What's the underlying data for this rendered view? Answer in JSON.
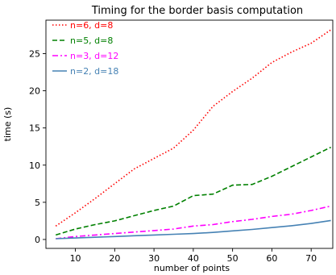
{
  "chart_data": {
    "type": "line",
    "title": "Timing for the border basis computation",
    "xlabel": "number of points",
    "ylabel": "time (s)",
    "xlim": [
      2.5,
      75.5
    ],
    "ylim": [
      -1.2,
      29.5
    ],
    "xticks": [
      10,
      20,
      30,
      40,
      50,
      60,
      70
    ],
    "yticks": [
      0,
      5,
      10,
      15,
      20,
      25
    ],
    "grid": false,
    "legend_position": "top-left",
    "x": [
      5,
      10,
      15,
      20,
      25,
      30,
      35,
      40,
      45,
      50,
      55,
      60,
      65,
      70,
      75
    ],
    "series": [
      {
        "name": "n=6, d=8",
        "color": "#ff0000",
        "linestyle": "dotted",
        "values": [
          1.8,
          3.6,
          5.5,
          7.5,
          9.5,
          10.9,
          12.3,
          14.7,
          17.9,
          19.9,
          21.7,
          23.8,
          25.2,
          26.4,
          28.2
        ]
      },
      {
        "name": "n=5, d=8",
        "color": "#008000",
        "linestyle": "dashed",
        "values": [
          0.6,
          1.4,
          2.0,
          2.5,
          3.2,
          3.9,
          4.5,
          5.9,
          6.1,
          7.3,
          7.4,
          8.5,
          9.8,
          11.1,
          12.4
        ]
      },
      {
        "name": "n=3, d=12",
        "color": "#ff00ff",
        "linestyle": "dashdot",
        "values": [
          0.1,
          0.4,
          0.6,
          0.8,
          1.0,
          1.2,
          1.4,
          1.8,
          2.0,
          2.4,
          2.7,
          3.1,
          3.4,
          3.9,
          4.5
        ]
      },
      {
        "name": "n=2, d=18",
        "color": "#4682b4",
        "linestyle": "solid",
        "values": [
          0.1,
          0.2,
          0.3,
          0.4,
          0.5,
          0.6,
          0.7,
          0.8,
          0.95,
          1.15,
          1.35,
          1.6,
          1.85,
          2.15,
          2.55
        ]
      }
    ]
  }
}
